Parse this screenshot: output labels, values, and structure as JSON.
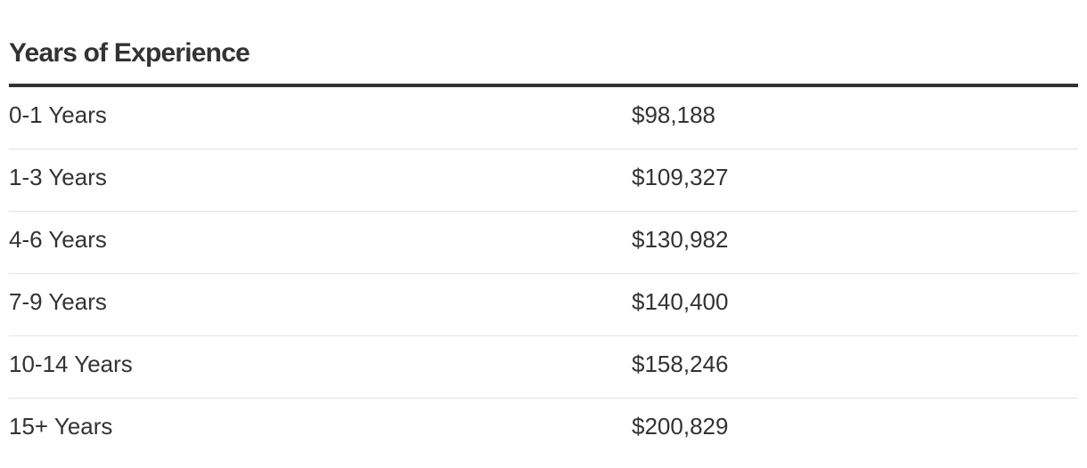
{
  "header": {
    "title": "Years of Experience"
  },
  "table": {
    "rows": [
      [
        "0-1 Years",
        "$98,188"
      ],
      [
        "1-3 Years",
        "$109,327"
      ],
      [
        "4-6 Years",
        "$130,982"
      ],
      [
        "7-9 Years",
        "$140,400"
      ],
      [
        "10-14 Years",
        "$158,246"
      ],
      [
        "15+ Years",
        "$200,829"
      ]
    ]
  }
}
